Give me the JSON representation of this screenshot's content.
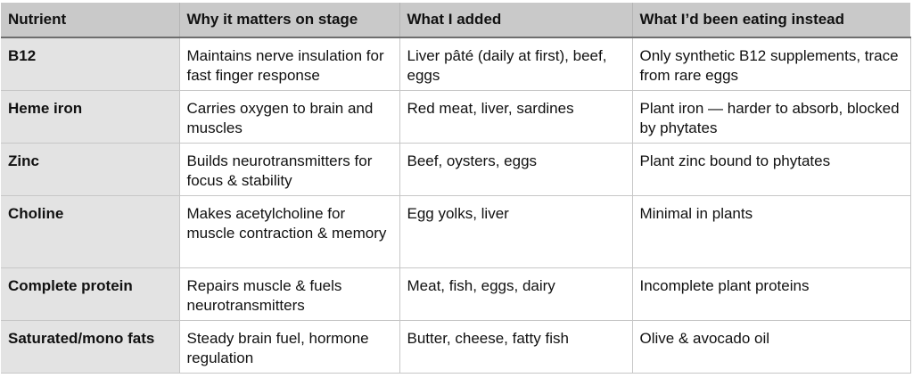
{
  "table": {
    "headers": [
      "Nutrient",
      "Why it matters on stage",
      "What I added",
      "What I’d been eating instead"
    ],
    "rows": [
      {
        "nutrient": "B12",
        "why": "Maintains nerve insulation for fast finger response",
        "added": "Liver pâté (daily at first), beef, eggs",
        "instead": "Only synthetic B12 supplements, trace from rare eggs"
      },
      {
        "nutrient": "Heme iron",
        "why": "Carries oxygen to brain and muscles",
        "added": "Red meat, liver, sardines",
        "instead": "Plant iron — harder to absorb, blocked by phytates"
      },
      {
        "nutrient": "Zinc",
        "why": "Builds neurotransmitters for focus & stability",
        "added": "Beef, oysters, eggs",
        "instead": "Plant zinc bound to phytates"
      },
      {
        "nutrient": "Choline",
        "why": "Makes acetylcholine for muscle contraction & memory",
        "added": "Egg yolks, liver",
        "instead": "Minimal in plants"
      },
      {
        "nutrient": "Complete protein",
        "why": "Repairs muscle & fuels neurotransmitters",
        "added": "Meat, fish, eggs, dairy",
        "instead": "Incomplete plant proteins"
      },
      {
        "nutrient": "Saturated/mono fats",
        "why": "Steady brain fuel, hormone regulation",
        "added": "Butter, cheese, fatty fish",
        "instead": "Olive & avocado oil"
      }
    ]
  }
}
